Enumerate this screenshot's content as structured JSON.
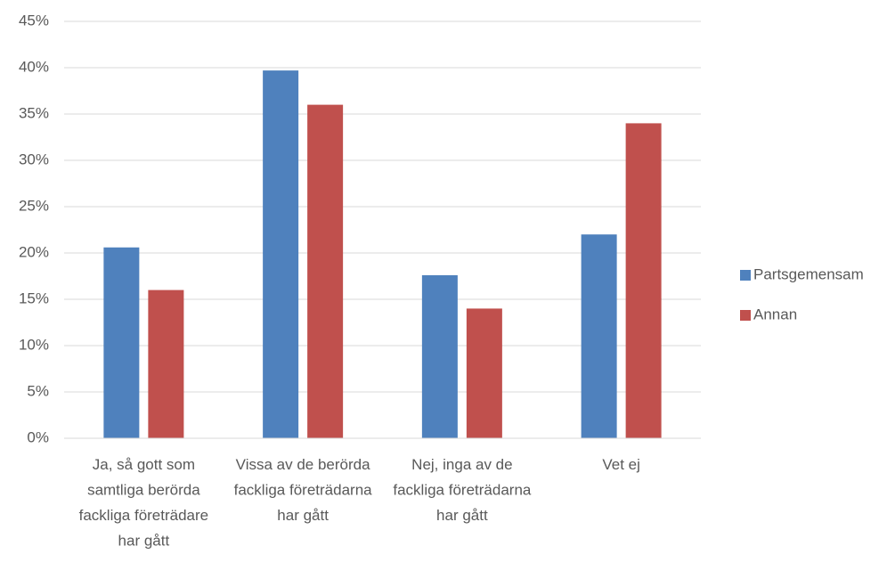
{
  "chart_data": {
    "type": "bar",
    "categories": [
      "Ja, så gott som samtliga berörda fackliga företrädare har gått",
      "Vissa av de berörda fackliga företrädarna har gått",
      "Nej, inga av de fackliga företrädarna har gått",
      "Vet ej"
    ],
    "series": [
      {
        "name": "Partsgemensam",
        "color": "#4f81bd",
        "values": [
          20.6,
          39.7,
          17.6,
          22.0
        ]
      },
      {
        "name": "Annan",
        "color": "#c0504d",
        "values": [
          16,
          36,
          14,
          34
        ]
      }
    ],
    "ylim": [
      0,
      45
    ],
    "yticks": [
      {
        "value": 0,
        "label": "0%"
      },
      {
        "value": 5,
        "label": "5%"
      },
      {
        "value": 10,
        "label": "10%"
      },
      {
        "value": 15,
        "label": "15%"
      },
      {
        "value": 20,
        "label": "20%"
      },
      {
        "value": 25,
        "label": "25%"
      },
      {
        "value": 30,
        "label": "30%"
      },
      {
        "value": 35,
        "label": "35%"
      },
      {
        "value": 40,
        "label": "40%"
      },
      {
        "value": 45,
        "label": "45%"
      }
    ],
    "grid": true,
    "legend": "right"
  }
}
